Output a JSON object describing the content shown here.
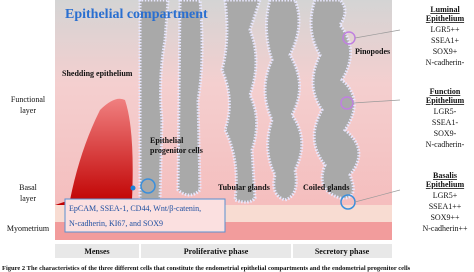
{
  "title": "Epithelial compartment",
  "layers": {
    "functional": [
      "Functional",
      "layer"
    ],
    "basal": [
      "Basal",
      "layer"
    ],
    "myometrium": "Myometrium"
  },
  "labels": {
    "shedding": "Shedding epithelium",
    "progenitor": [
      "Epithelial",
      "progenitor cells"
    ],
    "pinopodes": "Pinopodes",
    "tubular": "Tubular glands",
    "coiled": "Coiled glands"
  },
  "markers": [
    "EpCAM, SSEA-1, CD44, Wnt/β-catenin,",
    "N-cadherin, KI67, and SOX9"
  ],
  "phases": [
    "Menses",
    "Proliferative phase",
    "Secretory phase"
  ],
  "panels": [
    {
      "header": [
        "Luminal",
        "Epithelium"
      ],
      "items": [
        "LGR5++",
        "SSEA1+",
        "SOX9+",
        "N-cadherin-"
      ]
    },
    {
      "header": [
        "Function",
        "Epithelium"
      ],
      "items": [
        "LGR5-",
        "SSEA1-",
        "SOX9-",
        "N-cadherin-"
      ]
    },
    {
      "header": [
        "Basalis",
        "Epithelium"
      ],
      "items": [
        "LGR5+",
        "SSEA1++",
        "SOX9++",
        "N-cadherin++"
      ]
    }
  ],
  "caption": "Figure 2  The characteristics of the three different cells that constitute the endometrial epithelial compartments and the endometrial progenitor cells"
}
